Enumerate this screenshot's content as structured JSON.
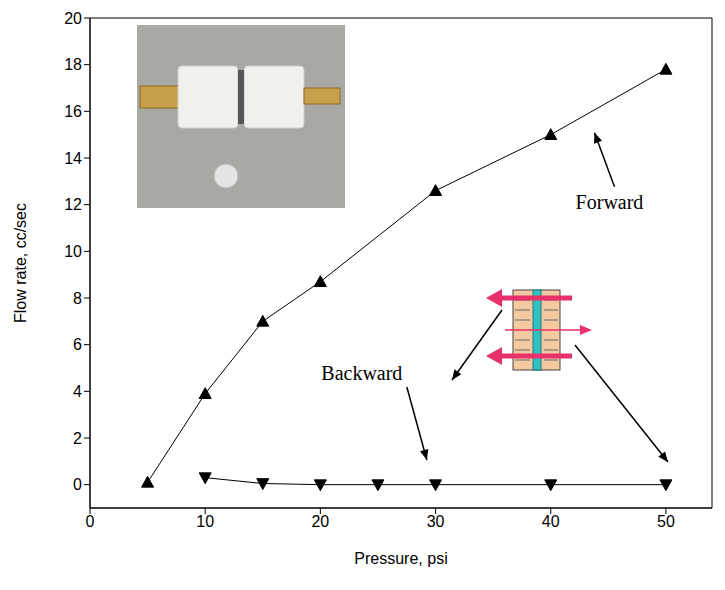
{
  "chart_data": {
    "type": "line",
    "x_label": "Pressure, psi",
    "y_label": "Flow rate, cc/sec",
    "xlim": [
      0,
      54
    ],
    "xticks": [
      0,
      10,
      20,
      30,
      40,
      50
    ],
    "ylim": [
      -1,
      20
    ],
    "yticks": [
      0,
      2,
      4,
      6,
      8,
      10,
      12,
      14,
      16,
      18,
      20
    ],
    "grid": false,
    "series": [
      {
        "name": "Forward",
        "color": "#000000",
        "marker": "triangle-up",
        "line_style": "solid",
        "x": [
          5,
          10,
          15,
          20,
          30,
          40,
          50
        ],
        "values": [
          0.1,
          3.9,
          7.0,
          8.7,
          12.6,
          15.0,
          17.8
        ]
      },
      {
        "name": "Backward",
        "color": "#000000",
        "marker": "triangle-down",
        "line_style": "solid",
        "x": [
          10,
          15,
          20,
          25,
          30,
          40,
          50
        ],
        "values": [
          0.3,
          0.05,
          0,
          0,
          0,
          0,
          0
        ]
      }
    ],
    "annotations": [
      {
        "text": "Forward",
        "x": 45.1,
        "y": 12.0
      },
      {
        "text": "Backward",
        "x": 23.6,
        "y": 4.7
      }
    ]
  }
}
